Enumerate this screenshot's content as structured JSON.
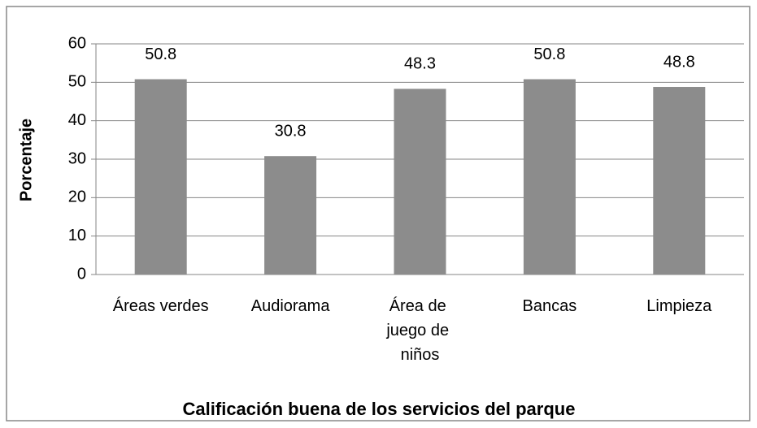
{
  "chart_data": {
    "type": "bar",
    "title": "Calificación buena de los servicios del parque",
    "ylabel": "Porcentaje",
    "categories": [
      "Áreas verdes",
      "Audiorama",
      "Área de juego de niños",
      "Bancas",
      "Limpieza"
    ],
    "values": [
      50.8,
      30.8,
      48.3,
      50.8,
      48.8
    ],
    "color": "#8c8c8c",
    "ylim": [
      0,
      60
    ],
    "yticks": [
      0,
      10,
      20,
      30,
      40,
      50,
      60
    ],
    "grid": true
  }
}
